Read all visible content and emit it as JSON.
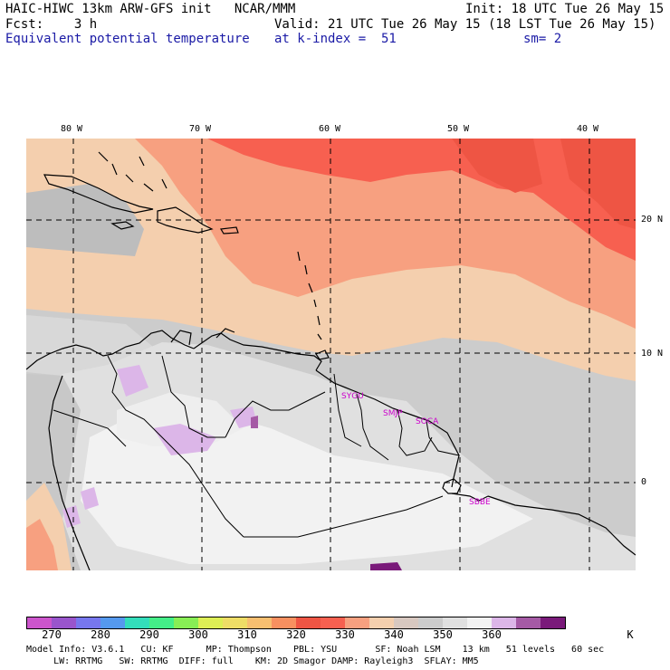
{
  "header": {
    "line1_left": "HAIC-HIWC 13km ARW-GFS init   NCAR/MMM",
    "line1_right": "Init: 18 UTC Tue 26 May 15",
    "line2_left": "Fcst:    3 h",
    "line2_right": "Valid: 21 UTC Tue 26 May 15 (18 LST Tue 26 May 15)",
    "field_name": "Equivalent potential temperature",
    "level": "at k-index =  51",
    "smoothing": "sm= 2"
  },
  "map": {
    "longitude_labels": [
      "80 W",
      "70 W",
      "60 W",
      "50 W",
      "40 W"
    ],
    "latitude_labels": [
      "20 N",
      "10 N",
      "0"
    ],
    "stations": [
      "SYGU",
      "SMJP",
      "SOCA",
      "SBBE"
    ]
  },
  "colorbar": {
    "colors": [
      "#cc55cc",
      "#9955cc",
      "#7777ee",
      "#5599ee",
      "#33ddbb",
      "#44ee88",
      "#88ee55",
      "#ddee55",
      "#eedd66",
      "#f7bf70",
      "#f79060",
      "#ee5544",
      "#f76050",
      "#f7a080",
      "#f4cfae",
      "#d8c8c0",
      "#cccccc",
      "#e0e0e0",
      "#f2f2f2",
      "#dcb6e8",
      "#a55aa5",
      "#7a1a7a"
    ],
    "tick_labels": [
      "270",
      "280",
      "290",
      "300",
      "310",
      "320",
      "330",
      "340",
      "350",
      "360"
    ],
    "unit": "K"
  },
  "footer": {
    "line1": "Model Info: V3.6.1   CU: KF      MP: Thompson    PBL: YSU       SF: Noah LSM    13 km   51 levels   60 sec",
    "line2": "     LW: RRTMG   SW: RRTMG  DIFF: full    KM: 2D Smagor DAMP: Rayleigh3  SFLAY: MM5"
  }
}
